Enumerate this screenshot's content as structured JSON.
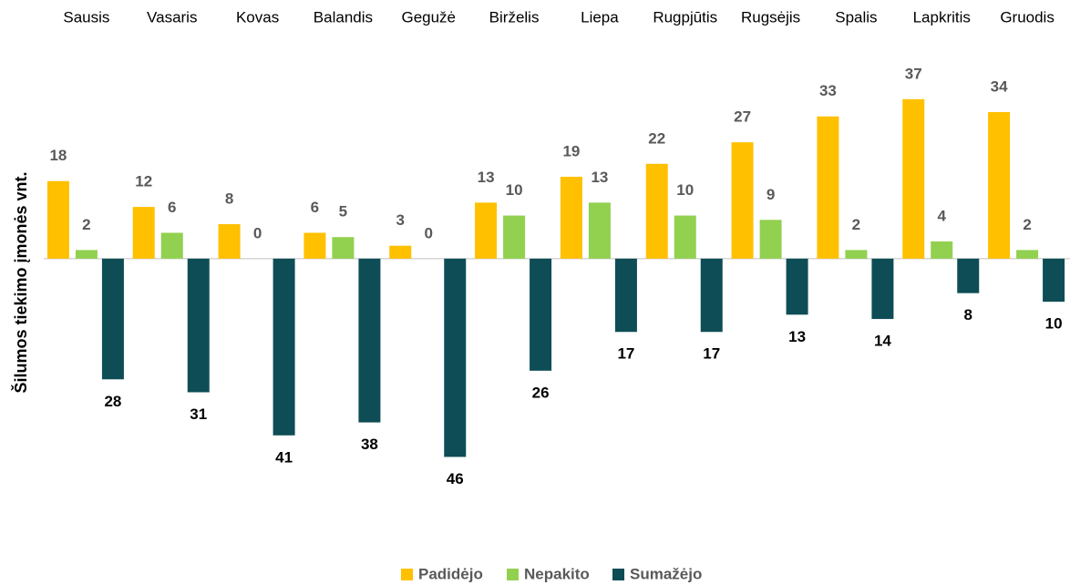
{
  "chart_data": {
    "type": "bar",
    "y_label": "Šilumos tiekimo įmonės vnt.",
    "categories": [
      "Sausis",
      "Vasaris",
      "Kovas",
      "Balandis",
      "Gegužė",
      "Birželis",
      "Liepa",
      "Rugpjūtis",
      "Rugsėjis",
      "Spalis",
      "Lapkritis",
      "Gruodis"
    ],
    "series": [
      {
        "name": "Padidėjo",
        "color": "#ffc000",
        "values": [
          18,
          12,
          8,
          6,
          3,
          13,
          19,
          22,
          27,
          33,
          37,
          34
        ]
      },
      {
        "name": "Nepakito",
        "color": "#92d050",
        "values": [
          2,
          6,
          0,
          5,
          0,
          10,
          13,
          10,
          9,
          2,
          4,
          2
        ]
      },
      {
        "name": "Sumažėjo",
        "color": "#0e4d55",
        "values": [
          -28,
          -31,
          -41,
          -38,
          -46,
          -26,
          -17,
          -17,
          -13,
          -14,
          -8,
          -10
        ],
        "value_labels": [
          "28",
          "31",
          "41",
          "38",
          "46",
          "26",
          "17",
          "17",
          "13",
          "14",
          "8",
          "10"
        ]
      }
    ],
    "ylim": [
      -55,
      45
    ],
    "legend": "bottom"
  }
}
